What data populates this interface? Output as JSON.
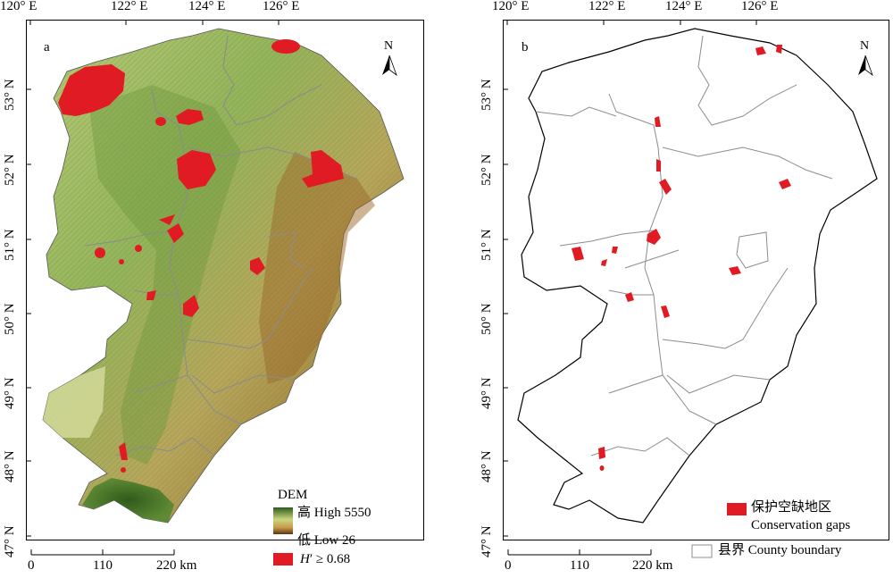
{
  "lon_labels": [
    "120° E",
    "122° E",
    "124° E",
    "126° E"
  ],
  "lat_labels": [
    "53° N",
    "52° N",
    "51° N",
    "50° N",
    "49° N",
    "48° N",
    "47° N"
  ],
  "panel_a": {
    "label": "a",
    "north": "N",
    "legend": {
      "title": "DEM",
      "high": "高 High 5550",
      "low": "低 Low 26",
      "hotspot_prefix": "H",
      "hotspot_rest": "′ ≥ 0.68"
    },
    "scale": {
      "ticks": [
        "0",
        "110",
        "220 km"
      ]
    }
  },
  "panel_b": {
    "label": "b",
    "north": "N",
    "legend": {
      "gap_zh": "保护空缺地区",
      "gap_en": "Conservation gaps",
      "county": "县界 County boundary"
    },
    "scale": {
      "ticks": [
        "0",
        "110",
        "220 km"
      ]
    }
  },
  "colors": {
    "dem_high": "#2f5a1a",
    "dem_mid": "#a8c468",
    "dem_low": "#8a5a1c",
    "hotspot": "#e01b24",
    "county_line": "#8c8c8c"
  }
}
